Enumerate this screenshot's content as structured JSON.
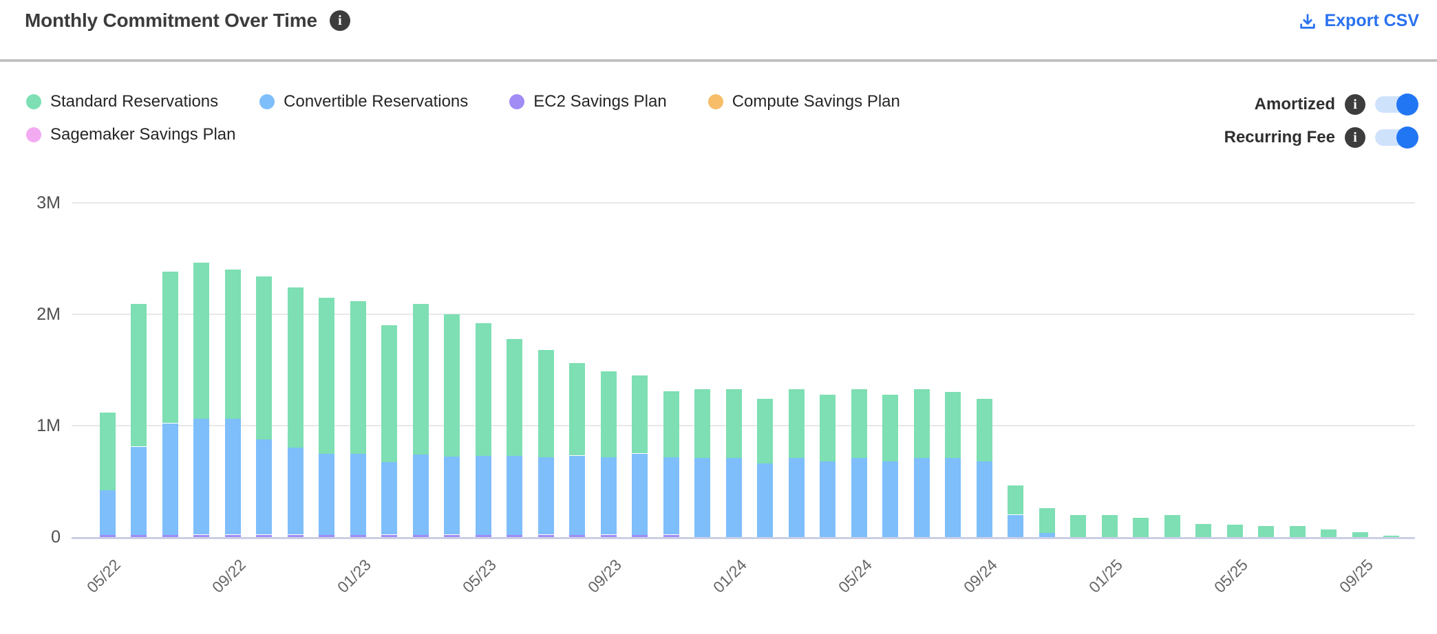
{
  "header": {
    "title": "Monthly Commitment Over Time",
    "export_label": "Export CSV"
  },
  "icons": {
    "info_glyph": "i"
  },
  "legend": [
    {
      "label": "Standard Reservations",
      "color": "#7ddfb3"
    },
    {
      "label": "Convertible Reservations",
      "color": "#7ebefb"
    },
    {
      "label": "EC2 Savings Plan",
      "color": "#a18bf5"
    },
    {
      "label": "Compute Savings Plan",
      "color": "#f7bd68"
    },
    {
      "label": "Sagemaker Savings Plan",
      "color": "#f2abf0"
    }
  ],
  "toggles": [
    {
      "label": "Amortized",
      "state": "on"
    },
    {
      "label": "Recurring Fee",
      "state": "on"
    }
  ],
  "colors": {
    "accent_blue": "#2a72ef",
    "toggle_track": "#cfe2fc",
    "toggle_knob": "#2176f3",
    "gridline": "#e8e8e8",
    "axis_line": "#c9cfe4"
  },
  "chart_data": {
    "type": "bar",
    "stacked": true,
    "stack_order": "bottom-to-top",
    "values_unit": "millions",
    "ylim": [
      0,
      3
    ],
    "yticks": [
      {
        "label": "0",
        "value": 0
      },
      {
        "label": "1M",
        "value": 1
      },
      {
        "label": "2M",
        "value": 2
      },
      {
        "label": "3M",
        "value": 3
      }
    ],
    "x_tick_every": 4,
    "categories": [
      "05/22",
      "06/22",
      "07/22",
      "08/22",
      "09/22",
      "10/22",
      "11/22",
      "12/22",
      "01/23",
      "02/23",
      "03/23",
      "04/23",
      "05/23",
      "06/23",
      "07/23",
      "08/23",
      "09/23",
      "10/23",
      "11/23",
      "12/23",
      "01/24",
      "02/24",
      "03/24",
      "04/24",
      "05/24",
      "06/24",
      "07/24",
      "08/24",
      "09/24",
      "10/24",
      "11/24",
      "12/24",
      "01/25",
      "02/25",
      "03/25",
      "04/25",
      "05/25",
      "06/25",
      "07/25",
      "08/25",
      "09/25",
      "10/25"
    ],
    "series": [
      {
        "name": "EC2 Savings Plan",
        "color": "#a18bf5",
        "values": [
          0.02,
          0.02,
          0.02,
          0.02,
          0.02,
          0.02,
          0.02,
          0.02,
          0.02,
          0.02,
          0.02,
          0.02,
          0.02,
          0.02,
          0.02,
          0.02,
          0.02,
          0.02,
          0.02,
          0,
          0,
          0,
          0,
          0,
          0,
          0,
          0,
          0,
          0,
          0,
          0,
          0,
          0,
          0,
          0,
          0,
          0,
          0,
          0,
          0,
          0,
          0
        ]
      },
      {
        "name": "Convertible Reservations",
        "color": "#7ebefb",
        "values": [
          0.4,
          0.79,
          1.0,
          1.04,
          1.04,
          0.86,
          0.78,
          0.73,
          0.73,
          0.65,
          0.72,
          0.7,
          0.71,
          0.71,
          0.7,
          0.71,
          0.7,
          0.73,
          0.7,
          0.71,
          0.71,
          0.66,
          0.71,
          0.68,
          0.71,
          0.68,
          0.71,
          0.71,
          0.68,
          0.2,
          0.04,
          0,
          0,
          0,
          0,
          0,
          0,
          0,
          0,
          0,
          0,
          0
        ]
      },
      {
        "name": "Standard Reservations",
        "color": "#7ddfb3",
        "values": [
          0.7,
          1.28,
          1.36,
          1.4,
          1.34,
          1.46,
          1.44,
          1.4,
          1.37,
          1.23,
          1.35,
          1.28,
          1.19,
          1.05,
          0.96,
          0.83,
          0.77,
          0.7,
          0.59,
          0.62,
          0.62,
          0.58,
          0.62,
          0.6,
          0.62,
          0.6,
          0.62,
          0.59,
          0.56,
          0.26,
          0.22,
          0.2,
          0.2,
          0.17,
          0.2,
          0.12,
          0.11,
          0.1,
          0.1,
          0.07,
          0.045,
          0.015
        ]
      },
      {
        "name": "Compute Savings Plan",
        "color": "#f7bd68",
        "values": [
          0,
          0,
          0,
          0,
          0,
          0,
          0,
          0,
          0,
          0,
          0,
          0,
          0,
          0,
          0,
          0,
          0,
          0,
          0,
          0,
          0,
          0,
          0,
          0,
          0,
          0,
          0,
          0,
          0,
          0,
          0,
          0,
          0,
          0,
          0,
          0,
          0,
          0,
          0,
          0,
          0,
          0
        ]
      },
      {
        "name": "Sagemaker Savings Plan",
        "color": "#f2abf0",
        "values": [
          0,
          0,
          0,
          0,
          0,
          0,
          0,
          0,
          0,
          0,
          0,
          0,
          0,
          0,
          0,
          0,
          0,
          0,
          0,
          0,
          0,
          0,
          0,
          0,
          0,
          0,
          0,
          0,
          0,
          0,
          0,
          0,
          0,
          0,
          0,
          0,
          0,
          0,
          0,
          0,
          0,
          0
        ]
      }
    ]
  }
}
